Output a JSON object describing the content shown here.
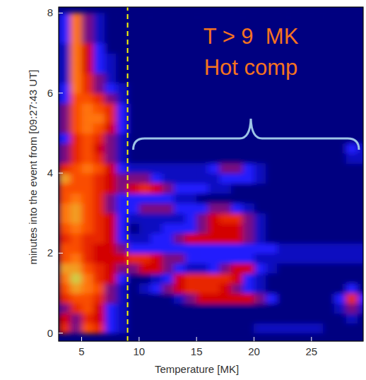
{
  "chart_data": {
    "type": "heatmap",
    "x_label": "Temperature [MK]",
    "y_label": "minutes into the event from [09:27:43 UT]",
    "xlim": [
      3,
      29.5
    ],
    "ylim": [
      -0.2,
      8.15
    ],
    "xticks": [
      5,
      10,
      15,
      20,
      25
    ],
    "yticks": [
      0,
      2,
      4,
      6,
      8
    ],
    "x_bins": [
      3,
      4,
      5,
      6,
      7,
      8,
      9,
      10,
      11,
      12,
      13,
      14,
      15,
      16,
      17,
      18,
      19,
      20,
      21,
      22,
      23,
      24,
      25,
      26,
      27,
      28,
      29,
      30
    ],
    "y_bins": [
      0,
      0.25,
      0.5,
      0.75,
      1,
      1.25,
      1.5,
      1.75,
      2,
      2.25,
      2.5,
      2.75,
      3,
      3.25,
      3.5,
      3.75,
      4,
      4.25,
      4.5,
      4.75,
      5,
      5.25,
      5.5,
      5.75,
      6,
      6.25,
      6.5,
      6.75,
      7,
      7.25,
      7.5,
      7.75,
      8
    ],
    "cells": [
      [
        5,
        3,
        6,
        5,
        2,
        1,
        0,
        0,
        0,
        0,
        0,
        0,
        0,
        0,
        0,
        0,
        0,
        1,
        1,
        1,
        1,
        1,
        1,
        0,
        0,
        0,
        0
      ],
      [
        4,
        3,
        5,
        4,
        2,
        1,
        0,
        0,
        0,
        0,
        0,
        0,
        0,
        0,
        0,
        0,
        0,
        0,
        0,
        0,
        0,
        0,
        0,
        0,
        0,
        1,
        0
      ],
      [
        3,
        5,
        6,
        4,
        2,
        1,
        0,
        0,
        0,
        0,
        0,
        0,
        0,
        0,
        0,
        0,
        0,
        0,
        0,
        0,
        0,
        0,
        0,
        0,
        1,
        3,
        1
      ],
      [
        5,
        6,
        6,
        5,
        3,
        1,
        0,
        0,
        0,
        0,
        1,
        3,
        4,
        4,
        4,
        4,
        4,
        3,
        2,
        0,
        0,
        0,
        0,
        0,
        2,
        5,
        2
      ],
      [
        6,
        8,
        7,
        6,
        3,
        1,
        0,
        1,
        2,
        3,
        4,
        5,
        5,
        5,
        4,
        3,
        2,
        1,
        0,
        0,
        0,
        0,
        0,
        0,
        0,
        2,
        0
      ],
      [
        7,
        9,
        7,
        5,
        4,
        2,
        0,
        0,
        1,
        2,
        4,
        5,
        5,
        5,
        5,
        4,
        2,
        1,
        0,
        0,
        0,
        0,
        0,
        0,
        0,
        0,
        0
      ],
      [
        8,
        8,
        6,
        5,
        4,
        3,
        3,
        4,
        4,
        3,
        2,
        1,
        1,
        2,
        3,
        4,
        4,
        2,
        1,
        0,
        0,
        0,
        0,
        0,
        0,
        0,
        0
      ],
      [
        6,
        7,
        5,
        4,
        4,
        4,
        5,
        5,
        4,
        3,
        3,
        2,
        2,
        2,
        2,
        2,
        2,
        1,
        1,
        1,
        1,
        1,
        1,
        1,
        1,
        1,
        1
      ],
      [
        6,
        6,
        5,
        4,
        4,
        3,
        2,
        2,
        2,
        2,
        2,
        2,
        2,
        2,
        2,
        2,
        2,
        2,
        2,
        1,
        1,
        1,
        1,
        1,
        1,
        1,
        1
      ],
      [
        5,
        6,
        5,
        5,
        4,
        2,
        1,
        1,
        2,
        2,
        3,
        4,
        4,
        4,
        4,
        4,
        3,
        1,
        0,
        0,
        0,
        0,
        0,
        0,
        0,
        0,
        0
      ],
      [
        6,
        7,
        6,
        5,
        4,
        2,
        0,
        1,
        1,
        2,
        2,
        2,
        3,
        4,
        4,
        4,
        3,
        1,
        0,
        0,
        0,
        0,
        0,
        0,
        0,
        0,
        0
      ],
      [
        7,
        8,
        6,
        5,
        4,
        2,
        1,
        1,
        1,
        1,
        1,
        2,
        3,
        4,
        5,
        5,
        3,
        1,
        0,
        0,
        0,
        0,
        0,
        0,
        0,
        0,
        0
      ],
      [
        7,
        8,
        6,
        5,
        3,
        2,
        2,
        3,
        3,
        3,
        2,
        2,
        2,
        3,
        3,
        2,
        1,
        0,
        0,
        0,
        0,
        0,
        0,
        0,
        0,
        0,
        0
      ],
      [
        6,
        7,
        6,
        5,
        3,
        2,
        2,
        2,
        2,
        2,
        1,
        1,
        0,
        0,
        0,
        0,
        0,
        0,
        0,
        0,
        0,
        0,
        0,
        0,
        0,
        0,
        0
      ],
      [
        6,
        6,
        6,
        5,
        4,
        3,
        4,
        5,
        4,
        3,
        2,
        2,
        2,
        1,
        1,
        0,
        0,
        0,
        0,
        0,
        0,
        0,
        0,
        0,
        0,
        0,
        0
      ],
      [
        8,
        6,
        6,
        5,
        4,
        3,
        3,
        3,
        2,
        1,
        1,
        1,
        1,
        1,
        2,
        2,
        2,
        1,
        0,
        0,
        0,
        0,
        0,
        0,
        0,
        0,
        0
      ],
      [
        5,
        6,
        7,
        6,
        4,
        2,
        1,
        1,
        1,
        1,
        1,
        1,
        1,
        2,
        3,
        3,
        2,
        1,
        0,
        0,
        0,
        0,
        0,
        0,
        0,
        0,
        0
      ],
      [
        3,
        5,
        6,
        5,
        3,
        1,
        0,
        0,
        0,
        0,
        0,
        0,
        0,
        0,
        0,
        0,
        0,
        0,
        0,
        0,
        0,
        0,
        0,
        0,
        0,
        1,
        1
      ],
      [
        3,
        5,
        6,
        4,
        3,
        1,
        0,
        0,
        0,
        0,
        0,
        0,
        0,
        0,
        0,
        0,
        0,
        0,
        0,
        0,
        0,
        0,
        0,
        0,
        0,
        2,
        1
      ],
      [
        2,
        5,
        6,
        5,
        3,
        1,
        0,
        0,
        0,
        0,
        0,
        0,
        0,
        0,
        0,
        0,
        0,
        0,
        0,
        0,
        0,
        0,
        0,
        0,
        0,
        0,
        0
      ],
      [
        3,
        6,
        7,
        6,
        4,
        2,
        0,
        0,
        0,
        0,
        0,
        0,
        0,
        0,
        0,
        0,
        0,
        0,
        0,
        0,
        0,
        0,
        0,
        0,
        0,
        0,
        0
      ],
      [
        3,
        6,
        7,
        7,
        5,
        2,
        0,
        0,
        0,
        0,
        0,
        0,
        0,
        0,
        0,
        0,
        0,
        0,
        0,
        0,
        0,
        0,
        0,
        0,
        0,
        0,
        0
      ],
      [
        3,
        6,
        7,
        6,
        5,
        2,
        0,
        0,
        0,
        0,
        0,
        0,
        0,
        0,
        0,
        0,
        0,
        0,
        0,
        0,
        0,
        0,
        0,
        0,
        0,
        0,
        0
      ],
      [
        2,
        6,
        6,
        5,
        3,
        1,
        0,
        0,
        0,
        0,
        0,
        0,
        0,
        0,
        0,
        0,
        0,
        0,
        0,
        0,
        0,
        0,
        0,
        0,
        0,
        0,
        0
      ],
      [
        2,
        7,
        5,
        3,
        2,
        1,
        0,
        0,
        0,
        0,
        0,
        0,
        0,
        0,
        0,
        0,
        0,
        0,
        0,
        0,
        0,
        0,
        0,
        0,
        0,
        0,
        0
      ],
      [
        1,
        7,
        5,
        3,
        1,
        0,
        0,
        0,
        0,
        0,
        0,
        0,
        0,
        0,
        0,
        0,
        0,
        0,
        0,
        0,
        0,
        0,
        0,
        0,
        0,
        0,
        0
      ],
      [
        1,
        7,
        4,
        2,
        1,
        0,
        0,
        0,
        0,
        0,
        0,
        0,
        0,
        0,
        0,
        0,
        0,
        0,
        0,
        0,
        0,
        0,
        0,
        0,
        0,
        0,
        0
      ],
      [
        1,
        7,
        4,
        2,
        1,
        0,
        0,
        0,
        0,
        0,
        0,
        0,
        0,
        0,
        0,
        0,
        0,
        0,
        0,
        0,
        0,
        0,
        0,
        0,
        0,
        0,
        0
      ],
      [
        1,
        7,
        4,
        2,
        0,
        0,
        0,
        0,
        0,
        0,
        0,
        0,
        0,
        0,
        0,
        0,
        0,
        0,
        0,
        0,
        0,
        0,
        0,
        0,
        0,
        0,
        0
      ],
      [
        2,
        7,
        3,
        1,
        0,
        0,
        0,
        0,
        0,
        0,
        0,
        0,
        0,
        0,
        0,
        0,
        0,
        0,
        0,
        0,
        0,
        0,
        0,
        0,
        0,
        0,
        0
      ],
      [
        2,
        7,
        3,
        1,
        0,
        0,
        0,
        0,
        0,
        0,
        0,
        0,
        0,
        0,
        0,
        0,
        0,
        0,
        0,
        0,
        0,
        0,
        0,
        0,
        0,
        0,
        0
      ],
      [
        2,
        7,
        3,
        1,
        0,
        0,
        0,
        0,
        0,
        0,
        0,
        0,
        0,
        0,
        0,
        0,
        0,
        0,
        0,
        0,
        0,
        0,
        0,
        0,
        0,
        0,
        0
      ]
    ],
    "threshold": 9,
    "annotations": [
      "T > 9  MK",
      "Hot comp"
    ]
  }
}
